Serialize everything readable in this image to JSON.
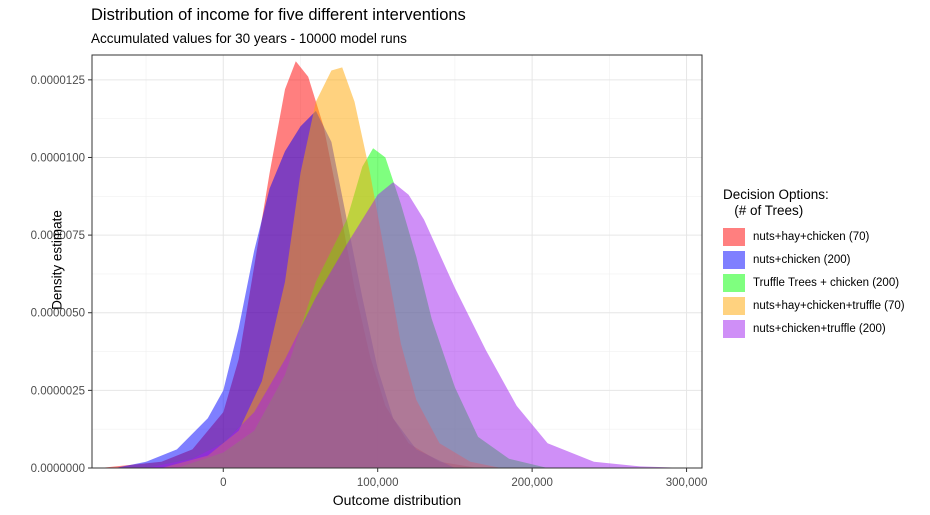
{
  "chart_data": {
    "type": "area",
    "title": "Distribution of income for five different interventions",
    "subtitle": "Accumulated values for 30 years - 10000 model runs",
    "xlabel": "Outcome distribution",
    "ylabel": "Density estimate",
    "xlim": [
      -85000,
      310000
    ],
    "ylim": [
      0,
      1.33e-05
    ],
    "x_ticks": [
      0,
      100000,
      200000,
      300000
    ],
    "x_tick_labels": [
      "0",
      "100,000",
      "200,000",
      "300,000"
    ],
    "y_ticks": [
      0,
      2.5e-06,
      5e-06,
      7.5e-06,
      1e-05,
      1.25e-05
    ],
    "y_tick_labels": [
      "0.0000000",
      "0.0000025",
      "0.0000050",
      "0.0000075",
      "0.0000100",
      "0.0000125"
    ],
    "grid": true,
    "legend_position": "right",
    "legend_title": "Decision Options:\n   (# of Trees)",
    "series": [
      {
        "name": "nuts+hay+chicken (70)",
        "color": "#FF0000",
        "points": [
          [
            -80000,
            0
          ],
          [
            -40000,
            2e-07
          ],
          [
            -20000,
            6e-07
          ],
          [
            0,
            1.8e-06
          ],
          [
            10000,
            3.5e-06
          ],
          [
            20000,
            6.5e-06
          ],
          [
            30000,
            9.5e-06
          ],
          [
            40000,
            1.22e-05
          ],
          [
            47000,
            1.31e-05
          ],
          [
            55000,
            1.26e-05
          ],
          [
            65000,
            1.1e-05
          ],
          [
            75000,
            8.5e-06
          ],
          [
            85000,
            5.8e-06
          ],
          [
            95000,
            3.6e-06
          ],
          [
            105000,
            2e-06
          ],
          [
            120000,
            8e-07
          ],
          [
            140000,
            2e-07
          ],
          [
            165000,
            0
          ]
        ]
      },
      {
        "name": "nuts+chicken (200)",
        "color": "#0000FF",
        "points": [
          [
            -70000,
            0
          ],
          [
            -50000,
            2e-07
          ],
          [
            -30000,
            6e-07
          ],
          [
            -10000,
            1.6e-06
          ],
          [
            0,
            2.5e-06
          ],
          [
            10000,
            4.5e-06
          ],
          [
            20000,
            7e-06
          ],
          [
            30000,
            9e-06
          ],
          [
            40000,
            1.02e-05
          ],
          [
            50000,
            1.1e-05
          ],
          [
            60000,
            1.15e-05
          ],
          [
            70000,
            1.05e-05
          ],
          [
            80000,
            8e-06
          ],
          [
            90000,
            5.5e-06
          ],
          [
            100000,
            3.2e-06
          ],
          [
            110000,
            1.6e-06
          ],
          [
            125000,
            6e-07
          ],
          [
            150000,
            0
          ]
        ]
      },
      {
        "name": "Truffle Trees + chicken (200)",
        "color": "#00FF00",
        "points": [
          [
            -30000,
            0
          ],
          [
            0,
            5e-07
          ],
          [
            20000,
            1.2e-06
          ],
          [
            40000,
            3e-06
          ],
          [
            50000,
            4.5e-06
          ],
          [
            60000,
            6e-06
          ],
          [
            70000,
            7e-06
          ],
          [
            80000,
            8e-06
          ],
          [
            90000,
            9.7e-06
          ],
          [
            97000,
            1.03e-05
          ],
          [
            105000,
            1e-05
          ],
          [
            115000,
            8.5e-06
          ],
          [
            125000,
            6.8e-06
          ],
          [
            135000,
            4.8e-06
          ],
          [
            150000,
            2.6e-06
          ],
          [
            165000,
            1e-06
          ],
          [
            185000,
            3e-07
          ],
          [
            210000,
            0
          ]
        ]
      },
      {
        "name": "nuts+hay+chicken+truffle (70)",
        "color": "#FFA500",
        "points": [
          [
            -40000,
            0
          ],
          [
            -10000,
            4e-07
          ],
          [
            10000,
            1.2e-06
          ],
          [
            25000,
            2.8e-06
          ],
          [
            40000,
            6e-06
          ],
          [
            50000,
            9.5e-06
          ],
          [
            60000,
            1.18e-05
          ],
          [
            70000,
            1.28e-05
          ],
          [
            77000,
            1.29e-05
          ],
          [
            85000,
            1.18e-05
          ],
          [
            95000,
            9.5e-06
          ],
          [
            105000,
            6.8e-06
          ],
          [
            115000,
            4e-06
          ],
          [
            125000,
            2.2e-06
          ],
          [
            140000,
            8e-07
          ],
          [
            160000,
            2e-07
          ],
          [
            180000,
            0
          ]
        ]
      },
      {
        "name": "nuts+chicken+truffle (200)",
        "color": "#A020F0",
        "points": [
          [
            -50000,
            0
          ],
          [
            -20000,
            3e-07
          ],
          [
            0,
            8e-07
          ],
          [
            20000,
            1.8e-06
          ],
          [
            40000,
            3.5e-06
          ],
          [
            60000,
            5.5e-06
          ],
          [
            80000,
            7.2e-06
          ],
          [
            100000,
            8.8e-06
          ],
          [
            110000,
            9.2e-06
          ],
          [
            120000,
            8.8e-06
          ],
          [
            130000,
            8e-06
          ],
          [
            150000,
            5.8e-06
          ],
          [
            170000,
            3.8e-06
          ],
          [
            190000,
            2e-06
          ],
          [
            210000,
            8e-07
          ],
          [
            240000,
            2e-07
          ],
          [
            270000,
            5e-08
          ],
          [
            300000,
            0
          ]
        ]
      }
    ]
  }
}
